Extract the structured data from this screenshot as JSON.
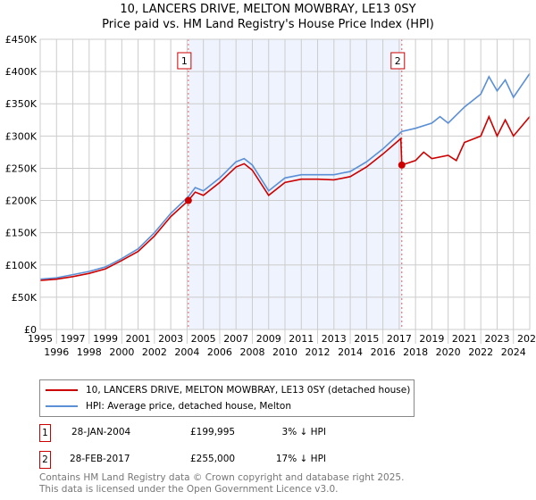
{
  "chart_data": {
    "type": "line",
    "title": "10, LANCERS DRIVE, MELTON MOWBRAY, LE13 0SY",
    "subtitle": "Price paid vs. HM Land Registry's House Price Index (HPI)",
    "xlim": [
      1995,
      2025
    ],
    "ylim": [
      0,
      450000
    ],
    "x_ticks": [
      "1995",
      "1996",
      "1997",
      "1998",
      "1999",
      "2000",
      "2001",
      "2002",
      "2003",
      "2004",
      "2005",
      "2006",
      "2007",
      "2008",
      "2009",
      "2010",
      "2011",
      "2012",
      "2013",
      "2014",
      "2015",
      "2016",
      "2017",
      "2018",
      "2019",
      "2020",
      "2021",
      "2022",
      "2023",
      "2024",
      "2025"
    ],
    "y_ticks": [
      {
        "v": 0,
        "l": "£0"
      },
      {
        "v": 50000,
        "l": "£50K"
      },
      {
        "v": 100000,
        "l": "£100K"
      },
      {
        "v": 150000,
        "l": "£150K"
      },
      {
        "v": 200000,
        "l": "£200K"
      },
      {
        "v": 250000,
        "l": "£250K"
      },
      {
        "v": 300000,
        "l": "£300K"
      },
      {
        "v": 350000,
        "l": "£350K"
      },
      {
        "v": 400000,
        "l": "£400K"
      },
      {
        "v": 450000,
        "l": "£450K"
      }
    ],
    "grid": true,
    "shaded_range": [
      2004.08,
      2017.16
    ],
    "series": [
      {
        "name": "10, LANCERS DRIVE, MELTON MOWBRAY, LE13 0SY (detached house)",
        "color": "#cc0000",
        "x": [
          1995,
          1996,
          1997,
          1998,
          1999,
          2000,
          2001,
          2002,
          2003,
          2004.08,
          2004.5,
          2005,
          2006,
          2007,
          2007.5,
          2008,
          2009,
          2010,
          2011,
          2012,
          2013,
          2014,
          2015,
          2016,
          2017.1,
          2017.16,
          2018,
          2018.5,
          2019,
          2020,
          2020.5,
          2021,
          2022,
          2022.5,
          2023,
          2023.5,
          2024,
          2025
        ],
        "y": [
          76000,
          78000,
          82000,
          87000,
          94000,
          107000,
          121000,
          145000,
          175000,
          199995,
          213000,
          208000,
          228000,
          252000,
          257000,
          247000,
          208000,
          228000,
          233000,
          233000,
          232000,
          237000,
          252000,
          272000,
          296000,
          255000,
          262000,
          275000,
          265000,
          270000,
          262000,
          290000,
          300000,
          330000,
          300000,
          325000,
          300000,
          330000
        ]
      },
      {
        "name": "HPI: Average price, detached house, Melton",
        "color": "#5b8fd6",
        "x": [
          1995,
          1996,
          1997,
          1998,
          1999,
          2000,
          2001,
          2002,
          2003,
          2004.08,
          2004.5,
          2005,
          2006,
          2007,
          2007.5,
          2008,
          2009,
          2010,
          2011,
          2012,
          2013,
          2014,
          2015,
          2016,
          2017.16,
          2018,
          2019,
          2019.5,
          2020,
          2021,
          2022,
          2022.5,
          2023,
          2023.5,
          2024,
          2025
        ],
        "y": [
          78000,
          80000,
          85000,
          90000,
          97000,
          110000,
          125000,
          150000,
          180000,
          206000,
          220000,
          215000,
          235000,
          260000,
          265000,
          255000,
          215000,
          235000,
          240000,
          240000,
          240000,
          245000,
          260000,
          280000,
          307000,
          312000,
          320000,
          330000,
          320000,
          345000,
          365000,
          392000,
          370000,
          387000,
          360000,
          397000
        ]
      }
    ],
    "markers": [
      {
        "label": "1",
        "x": 2004.08,
        "y": 199995
      },
      {
        "label": "2",
        "x": 2017.16,
        "y": 255000
      }
    ]
  },
  "transactions": [
    {
      "num": "1",
      "date": "28-JAN-2004",
      "price": "£199,995",
      "delta": "3% ↓ HPI"
    },
    {
      "num": "2",
      "date": "28-FEB-2017",
      "price": "£255,000",
      "delta": "17% ↓ HPI"
    }
  ],
  "footer": {
    "line1": "Contains HM Land Registry data © Crown copyright and database right 2025.",
    "line2": "This data is licensed under the Open Government Licence v3.0."
  }
}
